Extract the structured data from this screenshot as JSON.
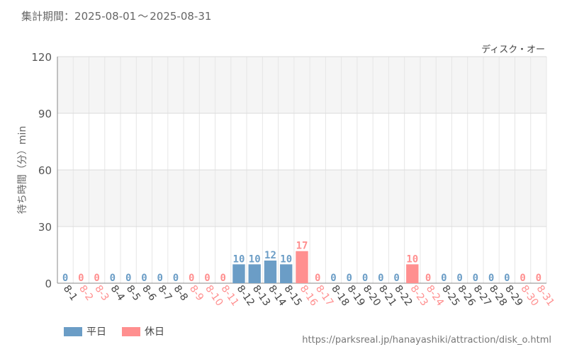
{
  "header": {
    "period_label": "集計期間",
    "separator": "：",
    "start": "2025-08-01",
    "range_sep": "〜",
    "end": "2025-08-31"
  },
  "chart_data": {
    "type": "bar",
    "title": "ディスク・オー",
    "ylabel": "待ち時間（分）min",
    "ylim": [
      0,
      120
    ],
    "yticks": [
      0,
      30,
      60,
      90,
      120
    ],
    "categories": [
      "8-1",
      "8-2",
      "8-3",
      "8-4",
      "8-5",
      "8-6",
      "8-7",
      "8-8",
      "8-9",
      "8-10",
      "8-11",
      "8-12",
      "8-13",
      "8-14",
      "8-15",
      "8-16",
      "8-17",
      "8-18",
      "8-19",
      "8-20",
      "8-21",
      "8-22",
      "8-23",
      "8-24",
      "8-25",
      "8-26",
      "8-27",
      "8-28",
      "8-29",
      "8-30",
      "8-31"
    ],
    "values": [
      0,
      0,
      0,
      0,
      0,
      0,
      0,
      0,
      0,
      0,
      0,
      10,
      10,
      12,
      10,
      17,
      0,
      0,
      0,
      0,
      0,
      0,
      10,
      0,
      0,
      0,
      0,
      0,
      0,
      0,
      0
    ],
    "day_type": [
      "weekday",
      "holiday",
      "holiday",
      "weekday",
      "weekday",
      "weekday",
      "weekday",
      "weekday",
      "holiday",
      "holiday",
      "holiday",
      "weekday",
      "weekday",
      "weekday",
      "weekday",
      "holiday",
      "holiday",
      "weekday",
      "weekday",
      "weekday",
      "weekday",
      "weekday",
      "holiday",
      "holiday",
      "weekday",
      "weekday",
      "weekday",
      "weekday",
      "weekday",
      "holiday",
      "holiday"
    ],
    "grid": true,
    "legend_position": "bottom-left",
    "legend": [
      {
        "key": "weekday",
        "label": "平日",
        "color": "#6b9dc6"
      },
      {
        "key": "holiday",
        "label": "休日",
        "color": "#ff8f8f"
      }
    ]
  },
  "footer": {
    "source": "https://parksreal.jp/hanayashiki/attraction/disk_o.html"
  }
}
